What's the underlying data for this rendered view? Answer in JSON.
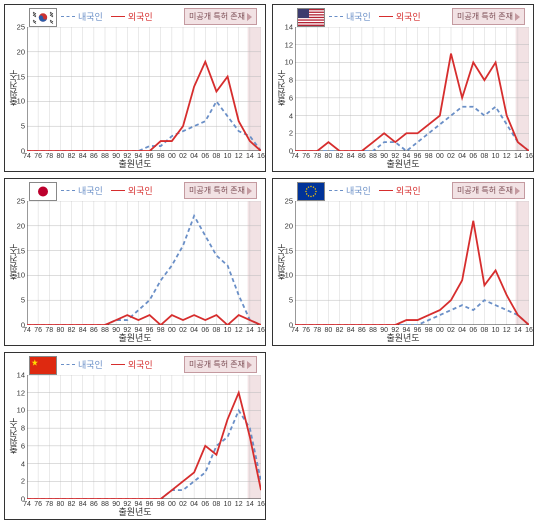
{
  "global": {
    "ylabel": "출원건수",
    "xlabel": "출원년도",
    "legend_domestic": "내국인",
    "legend_foreign": "외국인",
    "badge": "미공개 특허 존재",
    "xticks": [
      "74",
      "76",
      "78",
      "80",
      "82",
      "84",
      "86",
      "88",
      "90",
      "92",
      "94",
      "96",
      "98",
      "00",
      "02",
      "04",
      "06",
      "08",
      "10",
      "12",
      "14",
      "16"
    ],
    "colors": {
      "domestic": "#6a8fc7",
      "foreign": "#d62d2d",
      "grid": "#bbbbbb",
      "axis": "#333333",
      "shade": "#f2e2e4",
      "bg": "#ffffff",
      "text": "#333333"
    },
    "label_fontsize": 9,
    "tick_fontsize": 7.5,
    "line_width": 1.8
  },
  "panels": [
    {
      "id": "kr",
      "flag": "korea",
      "ymax": 25,
      "ystep": 5,
      "domestic": [
        0,
        0,
        0,
        0,
        0,
        0,
        0,
        0,
        0,
        0,
        0,
        1,
        1,
        3,
        4,
        5,
        6,
        10,
        7,
        4,
        3,
        0
      ],
      "foreign": [
        0,
        0,
        0,
        0,
        0,
        0,
        0,
        0,
        0,
        0,
        0,
        0,
        2,
        2,
        5,
        13,
        18,
        12,
        15,
        6,
        2,
        0
      ]
    },
    {
      "id": "us",
      "flag": "usa",
      "ymax": 14,
      "ystep": 2,
      "domestic": [
        0,
        0,
        0,
        0,
        0,
        0,
        0,
        0,
        1,
        1,
        0,
        1,
        2,
        3,
        4,
        5,
        5,
        4,
        5,
        3,
        1,
        0
      ],
      "foreign": [
        0,
        0,
        0,
        1,
        0,
        0,
        0,
        1,
        2,
        1,
        2,
        2,
        3,
        4,
        11,
        6,
        10,
        8,
        10,
        4,
        1,
        0
      ]
    },
    {
      "id": "jp",
      "flag": "japan",
      "ymax": 25,
      "ystep": 5,
      "domestic": [
        0,
        0,
        0,
        0,
        0,
        0,
        0,
        0,
        1,
        1,
        3,
        5,
        9,
        12,
        16,
        22,
        18,
        14,
        12,
        6,
        1,
        0
      ],
      "foreign": [
        0,
        0,
        0,
        0,
        0,
        0,
        0,
        0,
        1,
        2,
        1,
        2,
        0,
        2,
        1,
        2,
        1,
        2,
        0,
        2,
        1,
        0
      ]
    },
    {
      "id": "eu",
      "flag": "eu",
      "ymax": 25,
      "ystep": 5,
      "domestic": [
        0,
        0,
        0,
        0,
        0,
        0,
        0,
        0,
        0,
        0,
        0,
        0,
        1,
        2,
        3,
        4,
        3,
        5,
        4,
        3,
        2,
        0
      ],
      "foreign": [
        0,
        0,
        0,
        0,
        0,
        0,
        0,
        0,
        0,
        0,
        1,
        1,
        2,
        3,
        5,
        9,
        21,
        8,
        11,
        6,
        2,
        0
      ]
    },
    {
      "id": "cn",
      "flag": "china",
      "ymax": 14,
      "ystep": 2,
      "domestic": [
        0,
        0,
        0,
        0,
        0,
        0,
        0,
        0,
        0,
        0,
        0,
        0,
        0,
        1,
        1,
        2,
        3,
        6,
        7,
        10,
        8,
        2
      ],
      "foreign": [
        0,
        0,
        0,
        0,
        0,
        0,
        0,
        0,
        0,
        0,
        0,
        0,
        0,
        1,
        2,
        3,
        6,
        5,
        9,
        12,
        7,
        1
      ]
    }
  ]
}
